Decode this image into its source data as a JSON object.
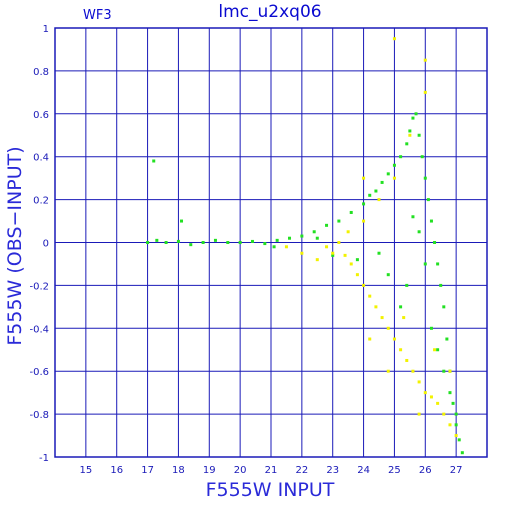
{
  "chart_data": {
    "type": "scatter",
    "title": "lmc_u2xq06",
    "annotations": [
      "WF3"
    ],
    "xlabel": "F555W INPUT",
    "ylabel": "F555W (OBS−INPUT)",
    "xlim": [
      14,
      28
    ],
    "ylim": [
      -1,
      1
    ],
    "xticks": [
      15,
      16,
      17,
      18,
      19,
      20,
      21,
      22,
      23,
      24,
      25,
      26,
      27
    ],
    "yticks": [
      -1,
      -0.8,
      -0.6,
      -0.4,
      -0.2,
      0,
      0.2,
      0.4,
      0.6,
      0.8,
      1
    ],
    "grid": true,
    "colors": {
      "axis": "#1a1ab8",
      "green": "#22e022",
      "yellow": "#f2f200",
      "text": "#0a0ad0"
    },
    "series": [
      {
        "color": "green",
        "x": [
          17.0,
          17.3,
          17.6,
          18.0,
          18.4,
          18.8,
          19.2,
          19.6,
          20.0,
          20.4,
          20.8,
          21.2,
          21.6,
          22.0,
          22.4,
          22.8,
          23.2,
          23.6,
          24.0,
          24.2,
          24.4,
          24.6,
          24.8,
          25.0,
          25.2,
          25.4,
          25.5,
          25.6,
          25.7,
          25.8,
          25.9,
          26.0,
          26.1,
          26.2,
          26.3,
          26.4,
          26.5,
          26.6,
          26.7,
          26.8,
          26.9,
          27.0,
          27.1,
          27.2,
          25.6,
          25.8,
          26.0,
          25.4,
          25.2,
          26.2,
          26.4,
          26.6,
          26.8,
          27.0,
          24.8,
          24.5,
          23.8,
          23.0,
          22.5,
          17.2,
          18.1,
          21.1
        ],
        "y": [
          0.0,
          0.01,
          0.0,
          0.005,
          -0.01,
          0.0,
          0.01,
          0.0,
          0.0,
          0.005,
          -0.005,
          0.01,
          0.02,
          0.03,
          0.05,
          0.08,
          0.1,
          0.14,
          0.18,
          0.22,
          0.24,
          0.28,
          0.32,
          0.36,
          0.4,
          0.46,
          0.52,
          0.58,
          0.6,
          0.5,
          0.4,
          0.3,
          0.2,
          0.1,
          0.0,
          -0.1,
          -0.2,
          -0.3,
          -0.45,
          -0.6,
          -0.75,
          -0.85,
          -0.92,
          -0.98,
          0.12,
          0.05,
          -0.1,
          -0.2,
          -0.3,
          -0.4,
          -0.5,
          -0.6,
          -0.7,
          -0.8,
          -0.15,
          -0.05,
          -0.08,
          -0.06,
          0.02,
          0.38,
          0.1,
          -0.02
        ]
      },
      {
        "color": "yellow",
        "x": [
          21.5,
          22.0,
          22.5,
          22.8,
          23.0,
          23.2,
          23.4,
          23.6,
          23.8,
          24.0,
          24.2,
          24.4,
          24.6,
          24.8,
          25.0,
          25.2,
          25.4,
          25.6,
          25.8,
          26.0,
          26.2,
          26.4,
          26.6,
          26.8,
          27.0,
          23.5,
          24.0,
          24.5,
          25.0,
          25.5,
          26.0,
          24.2,
          24.8,
          25.3,
          25.8,
          26.3,
          26.8,
          24.0,
          25.0,
          26.0
        ],
        "y": [
          -0.02,
          -0.05,
          -0.08,
          -0.02,
          -0.05,
          0.0,
          -0.06,
          -0.1,
          -0.15,
          -0.2,
          -0.25,
          -0.3,
          -0.35,
          -0.4,
          -0.45,
          -0.5,
          -0.55,
          -0.6,
          -0.65,
          -0.7,
          -0.72,
          -0.75,
          -0.8,
          -0.85,
          -0.9,
          0.05,
          0.1,
          0.2,
          0.3,
          0.5,
          0.7,
          -0.45,
          -0.6,
          -0.35,
          -0.8,
          -0.5,
          -0.6,
          0.3,
          0.95,
          0.85
        ]
      }
    ]
  }
}
